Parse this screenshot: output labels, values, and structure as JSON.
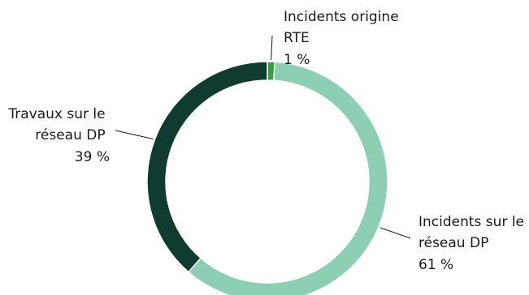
{
  "chart_data": {
    "type": "pie",
    "title": "",
    "categories": [
      "Incidents origine RTE",
      "Incidents sur le réseau DP",
      "Travaux sur le réseau DP"
    ],
    "values": [
      1,
      61,
      39
    ],
    "unit": "%",
    "colors": [
      "#3a9a45",
      "#8ccfb3",
      "#103b31"
    ],
    "labels": [
      {
        "lines": [
          "Incidents origine",
          "RTE"
        ],
        "value_text": "1 %",
        "color": "#3a9a45"
      },
      {
        "lines": [
          "Incidents sur le",
          "réseau DP"
        ],
        "value_text": "61 %",
        "color": "#8ccfb3"
      },
      {
        "lines": [
          "Travaux sur le",
          "réseau DP"
        ],
        "value_text": "39 %",
        "color": "#103b31"
      }
    ],
    "donut": true,
    "legend": "none"
  }
}
